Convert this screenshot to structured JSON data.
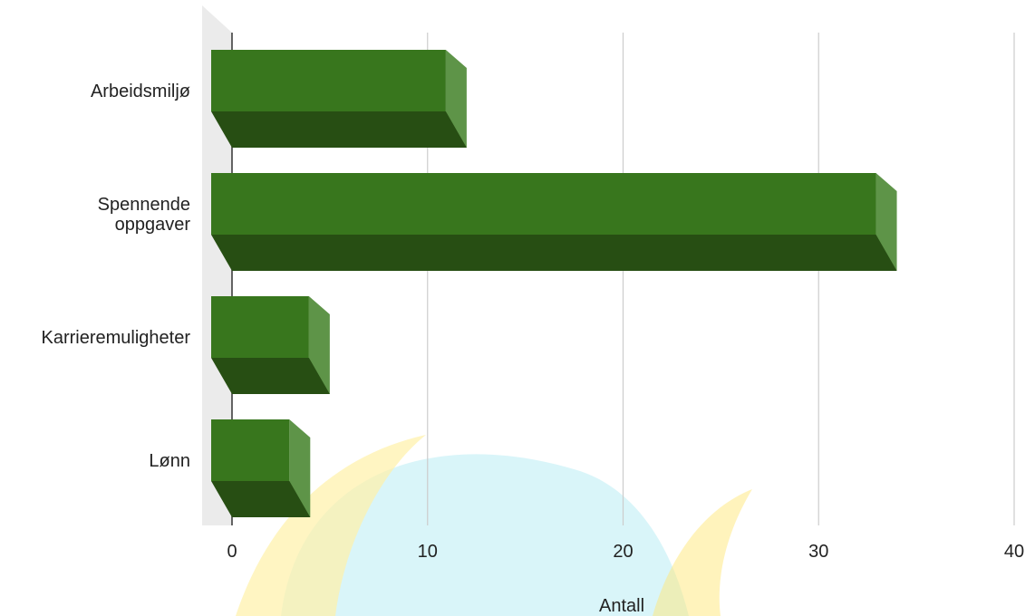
{
  "chart_data": {
    "type": "bar",
    "orientation": "horizontal",
    "style": "3d",
    "categories": [
      "Arbeidsmiljø",
      "Spennende oppgaver",
      "Karrieremuligheter",
      "Lønn"
    ],
    "category_lines": [
      [
        "Arbeidsmiljø"
      ],
      [
        "Spennende",
        "oppgaver"
      ],
      [
        "Karrieremuligheter"
      ],
      [
        "Lønn"
      ]
    ],
    "values": [
      12,
      34,
      5,
      4
    ],
    "xlabel": "Antall",
    "ylabel": "",
    "xlim": [
      0,
      40
    ],
    "xticks": [
      "0",
      "10",
      "20",
      "30",
      "40"
    ],
    "grid": true,
    "legend": "none",
    "colors": {
      "bar_front": "#38761d",
      "bar_side": "#5e9448",
      "bar_bottom": "#274e13",
      "wall": "#ebebeb",
      "gridline": "#cccccc",
      "axis": "#333333"
    }
  },
  "watermark": {
    "colors": [
      "#fff1a8",
      "#b9ecf4",
      "#ffe77a"
    ]
  }
}
